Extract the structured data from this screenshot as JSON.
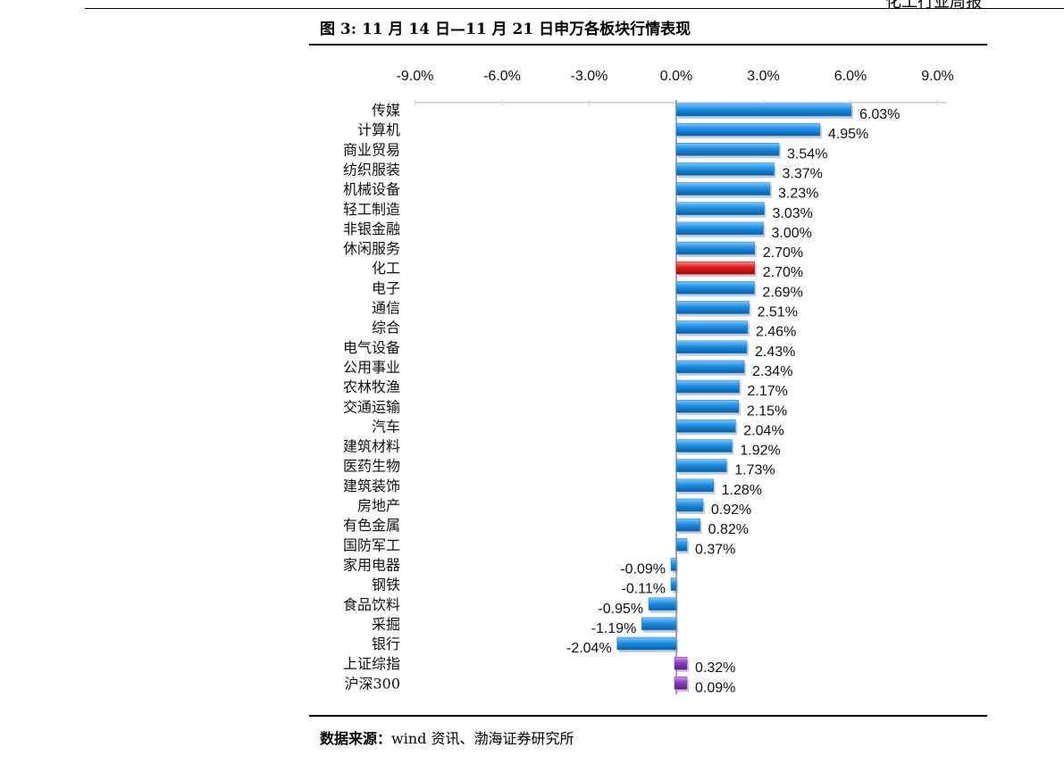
{
  "header": {
    "fragment": "化工行业周报"
  },
  "figure": {
    "title": "图 3:  11 月 14 日—11 月 21 日申万各板块行情表现"
  },
  "source": {
    "label": "数据来源：",
    "text": "wind 资讯、渤海证券研究所"
  },
  "colors": {
    "bar_default": "#1f8fe0",
    "bar_highlight": "#dd1c1c",
    "bar_index": "#8a3fc0",
    "axis": "#888888",
    "grid": "#d9d9d9"
  },
  "chart_data": {
    "type": "bar",
    "orientation": "horizontal",
    "title": "",
    "xlabel": "",
    "ylabel": "",
    "xlim": [
      -9.0,
      9.0
    ],
    "x_ticks": [
      "-9.0%",
      "-6.0%",
      "-3.0%",
      "0.0%",
      "3.0%",
      "6.0%",
      "9.0%"
    ],
    "x_tick_values": [
      -9,
      -6,
      -3,
      0,
      3,
      6,
      9
    ],
    "tick_position": "top",
    "grid": false,
    "categories": [
      "传媒",
      "计算机",
      "商业贸易",
      "纺织服装",
      "机械设备",
      "轻工制造",
      "非银金融",
      "休闲服务",
      "化工",
      "电子",
      "通信",
      "综合",
      "电气设备",
      "公用事业",
      "农林牧渔",
      "交通运输",
      "汽车",
      "建筑材料",
      "医药生物",
      "建筑装饰",
      "房地产",
      "有色金属",
      "国防军工",
      "家用电器",
      "钢铁",
      "食品饮料",
      "采掘",
      "银行",
      "上证综指",
      "沪深300"
    ],
    "values": [
      6.03,
      4.95,
      3.54,
      3.37,
      3.23,
      3.03,
      3.0,
      2.7,
      2.7,
      2.69,
      2.51,
      2.46,
      2.43,
      2.34,
      2.17,
      2.15,
      2.04,
      1.92,
      1.73,
      1.28,
      0.92,
      0.82,
      0.37,
      -0.09,
      -0.11,
      -0.95,
      -1.19,
      -2.04,
      0.32,
      0.09
    ],
    "value_labels": [
      "6.03%",
      "4.95%",
      "3.54%",
      "3.37%",
      "3.23%",
      "3.03%",
      "3.00%",
      "2.70%",
      "2.70%",
      "2.69%",
      "2.51%",
      "2.46%",
      "2.43%",
      "2.34%",
      "2.17%",
      "2.15%",
      "2.04%",
      "1.92%",
      "1.73%",
      "1.28%",
      "0.92%",
      "0.82%",
      "0.37%",
      "-0.09%",
      "-0.11%",
      "-0.95%",
      "-1.19%",
      "-2.04%",
      "0.32%",
      "0.09%"
    ],
    "bar_kind": [
      "sector",
      "sector",
      "sector",
      "sector",
      "sector",
      "sector",
      "sector",
      "sector",
      "highlight",
      "sector",
      "sector",
      "sector",
      "sector",
      "sector",
      "sector",
      "sector",
      "sector",
      "sector",
      "sector",
      "sector",
      "sector",
      "sector",
      "sector",
      "sector",
      "sector",
      "sector",
      "sector",
      "sector",
      "index",
      "index"
    ]
  }
}
